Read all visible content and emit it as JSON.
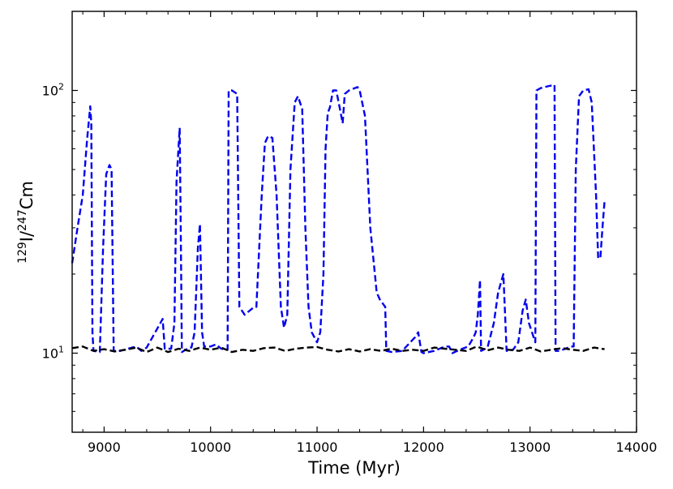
{
  "chart_data": {
    "type": "line",
    "title": "",
    "xlabel": "Time (Myr)",
    "ylabel": {
      "sup1": "129",
      "base1": "I/",
      "sup2": "247",
      "base2": "Cm"
    },
    "xlim": [
      8700,
      14000
    ],
    "ylim": [
      5,
      200
    ],
    "yscale": "log",
    "grid": false,
    "legend": "none",
    "xticks": [
      9000,
      10000,
      11000,
      12000,
      13000,
      14000
    ],
    "xtick_labels": [
      "9000",
      "10000",
      "11000",
      "12000",
      "13000",
      "14000"
    ],
    "yticks": [
      10,
      100
    ],
    "ytick_labels": [
      {
        "base": "10",
        "exp": "1"
      },
      {
        "base": "10",
        "exp": "2"
      }
    ],
    "series": [
      {
        "color": "#0000ee",
        "style": "dashed",
        "points": [
          [
            8700,
            22
          ],
          [
            8750,
            30
          ],
          [
            8800,
            40
          ],
          [
            8840,
            65
          ],
          [
            8870,
            87
          ],
          [
            8880,
            75
          ],
          [
            8890,
            12
          ],
          [
            8900,
            10.2
          ],
          [
            8960,
            10.1
          ],
          [
            8990,
            25
          ],
          [
            9020,
            48
          ],
          [
            9050,
            52
          ],
          [
            9070,
            50
          ],
          [
            9090,
            10.2
          ],
          [
            9150,
            10.2
          ],
          [
            9300,
            10.6
          ],
          [
            9350,
            10.2
          ],
          [
            9400,
            10.5
          ],
          [
            9480,
            12
          ],
          [
            9550,
            13.5
          ],
          [
            9570,
            10.4
          ],
          [
            9630,
            10.4
          ],
          [
            9660,
            13
          ],
          [
            9680,
            45
          ],
          [
            9710,
            72
          ],
          [
            9720,
            30
          ],
          [
            9730,
            10.1
          ],
          [
            9800,
            10.5
          ],
          [
            9820,
            10.5
          ],
          [
            9850,
            12
          ],
          [
            9880,
            25
          ],
          [
            9900,
            31
          ],
          [
            9920,
            12
          ],
          [
            9940,
            10.6
          ],
          [
            10000,
            10.6
          ],
          [
            10050,
            10.8
          ],
          [
            10100,
            10.4
          ],
          [
            10160,
            10.3
          ],
          [
            10170,
            100
          ],
          [
            10200,
            100
          ],
          [
            10250,
            97
          ],
          [
            10270,
            15
          ],
          [
            10320,
            14
          ],
          [
            10410,
            15
          ],
          [
            10430,
            15
          ],
          [
            10480,
            40
          ],
          [
            10510,
            63
          ],
          [
            10540,
            67
          ],
          [
            10580,
            66
          ],
          [
            10620,
            40
          ],
          [
            10660,
            15
          ],
          [
            10690,
            12.5
          ],
          [
            10720,
            14
          ],
          [
            10750,
            50
          ],
          [
            10790,
            90
          ],
          [
            10820,
            95
          ],
          [
            10860,
            85
          ],
          [
            10890,
            30
          ],
          [
            10920,
            15
          ],
          [
            10950,
            12
          ],
          [
            11000,
            11
          ],
          [
            11030,
            12
          ],
          [
            11060,
            20
          ],
          [
            11080,
            60
          ],
          [
            11100,
            82
          ],
          [
            11120,
            86
          ],
          [
            11150,
            100
          ],
          [
            11180,
            100
          ],
          [
            11210,
            87
          ],
          [
            11240,
            75
          ],
          [
            11260,
            97
          ],
          [
            11300,
            100
          ],
          [
            11380,
            103
          ],
          [
            11400,
            100
          ],
          [
            11450,
            80
          ],
          [
            11500,
            30
          ],
          [
            11560,
            17
          ],
          [
            11590,
            16
          ],
          [
            11640,
            15
          ],
          [
            11650,
            10.2
          ],
          [
            11700,
            10.1
          ],
          [
            11800,
            10.2
          ],
          [
            11920,
            11.5
          ],
          [
            11950,
            12
          ],
          [
            11980,
            10.1
          ],
          [
            12000,
            10
          ],
          [
            12100,
            10.2
          ],
          [
            12200,
            10.6
          ],
          [
            12240,
            10.6
          ],
          [
            12270,
            10
          ],
          [
            12340,
            10.3
          ],
          [
            12420,
            10.6
          ],
          [
            12470,
            11.5
          ],
          [
            12490,
            12
          ],
          [
            12510,
            14
          ],
          [
            12530,
            19
          ],
          [
            12540,
            10.2
          ],
          [
            12600,
            10.5
          ],
          [
            12660,
            13
          ],
          [
            12700,
            17
          ],
          [
            12750,
            20
          ],
          [
            12780,
            10.2
          ],
          [
            12840,
            10.3
          ],
          [
            12890,
            11
          ],
          [
            12930,
            14.5
          ],
          [
            12960,
            16
          ],
          [
            12990,
            13
          ],
          [
            13050,
            11
          ],
          [
            13060,
            100
          ],
          [
            13100,
            102
          ],
          [
            13180,
            104
          ],
          [
            13230,
            105
          ],
          [
            13240,
            10.2
          ],
          [
            13280,
            10.2
          ],
          [
            13360,
            10.5
          ],
          [
            13380,
            10.6
          ],
          [
            13400,
            10.6
          ],
          [
            13410,
            10.6
          ],
          [
            13430,
            50
          ],
          [
            13460,
            95
          ],
          [
            13500,
            100
          ],
          [
            13550,
            101
          ],
          [
            13580,
            90
          ],
          [
            13620,
            40
          ],
          [
            13640,
            23
          ],
          [
            13660,
            23
          ],
          [
            13680,
            30
          ],
          [
            13700,
            38
          ]
        ]
      },
      {
        "color": "#000000",
        "style": "dashed",
        "points": [
          [
            8700,
            10.45
          ],
          [
            8800,
            10.6
          ],
          [
            8900,
            10.2
          ],
          [
            9000,
            10.35
          ],
          [
            9100,
            10.15
          ],
          [
            9200,
            10.3
          ],
          [
            9300,
            10.5
          ],
          [
            9400,
            10.1
          ],
          [
            9500,
            10.5
          ],
          [
            9600,
            10.1
          ],
          [
            9700,
            10.4
          ],
          [
            9800,
            10.2
          ],
          [
            9900,
            10.5
          ],
          [
            10000,
            10.3
          ],
          [
            10100,
            10.5
          ],
          [
            10200,
            10.1
          ],
          [
            10300,
            10.3
          ],
          [
            10400,
            10.2
          ],
          [
            10500,
            10.45
          ],
          [
            10600,
            10.5
          ],
          [
            10700,
            10.2
          ],
          [
            10800,
            10.4
          ],
          [
            10900,
            10.5
          ],
          [
            11000,
            10.55
          ],
          [
            11100,
            10.3
          ],
          [
            11200,
            10.15
          ],
          [
            11300,
            10.35
          ],
          [
            11400,
            10.15
          ],
          [
            11500,
            10.35
          ],
          [
            11600,
            10.2
          ],
          [
            11700,
            10.4
          ],
          [
            11800,
            10.2
          ],
          [
            11900,
            10.3
          ],
          [
            12000,
            10.2
          ],
          [
            12100,
            10.5
          ],
          [
            12200,
            10.4
          ],
          [
            12300,
            10.3
          ],
          [
            12400,
            10.2
          ],
          [
            12500,
            10.6
          ],
          [
            12600,
            10.25
          ],
          [
            12700,
            10.5
          ],
          [
            12800,
            10.3
          ],
          [
            12900,
            10.2
          ],
          [
            13000,
            10.5
          ],
          [
            13100,
            10.15
          ],
          [
            13200,
            10.3
          ],
          [
            13300,
            10.45
          ],
          [
            13400,
            10.3
          ],
          [
            13500,
            10.2
          ],
          [
            13600,
            10.5
          ],
          [
            13700,
            10.35
          ]
        ]
      }
    ]
  }
}
